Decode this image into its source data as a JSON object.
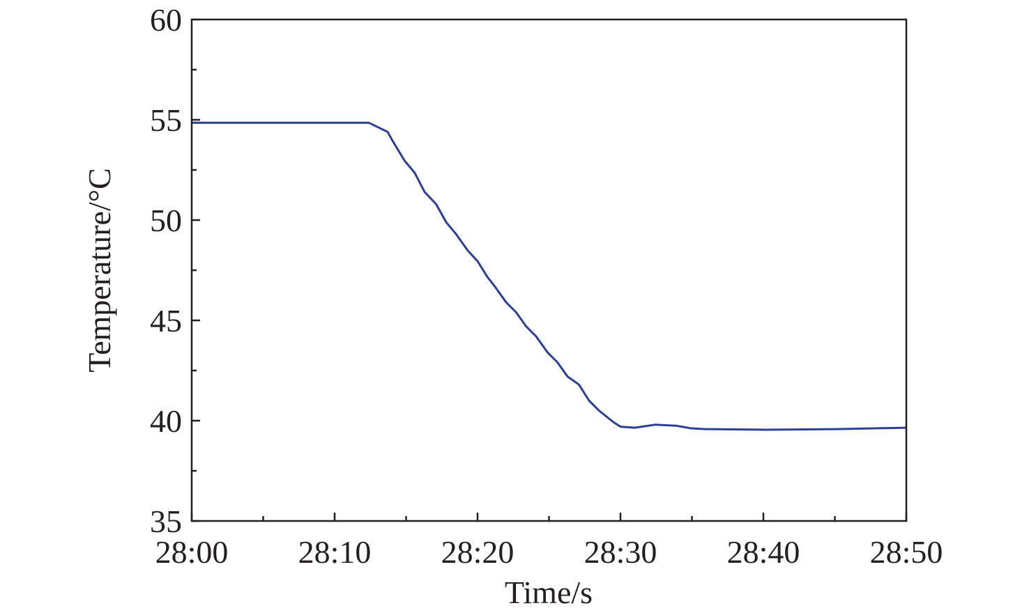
{
  "chart_data": {
    "type": "line",
    "title": "",
    "xlabel": "Time/s",
    "ylabel": "Temperature/°C",
    "xlim": [
      "28:00",
      "28:50"
    ],
    "ylim": [
      35,
      60
    ],
    "x_ticks": [
      "28:00",
      "28:10",
      "28:20",
      "28:30",
      "28:40",
      "28:50"
    ],
    "y_ticks": [
      "35",
      "40",
      "45",
      "50",
      "55",
      "60"
    ],
    "grid": false,
    "legend": "none",
    "line_color": "#2b3f97",
    "series": [
      {
        "x": [
          "28:00.0",
          "28:12.4",
          "28:13.7",
          "28:14.1",
          "28:14.9",
          "28:15.6",
          "28:16.3",
          "28:17.1",
          "28:17.8",
          "28:18.5",
          "28:19.3",
          "28:20.0",
          "28:20.7",
          "28:21.2",
          "28:22.0",
          "28:22.7",
          "28:23.4",
          "28:24.1",
          "28:24.9",
          "28:25.6",
          "28:26.3",
          "28:27.1",
          "28:27.8",
          "28:28.5",
          "28:29.5",
          "28:30.0",
          "28:31.0",
          "28:32.4",
          "28:33.9",
          "28:34.9",
          "28:35.9",
          "28:40.2",
          "28:45.1",
          "28:50.0"
        ],
        "y": [
          54.85,
          54.85,
          54.4,
          53.9,
          52.95,
          52.36,
          51.4,
          50.8,
          49.9,
          49.3,
          48.5,
          47.95,
          47.15,
          46.7,
          45.9,
          45.4,
          44.7,
          44.2,
          43.4,
          42.9,
          42.2,
          41.8,
          41.0,
          40.5,
          39.93,
          39.7,
          39.65,
          39.8,
          39.75,
          39.62,
          39.58,
          39.55,
          39.58,
          39.65
        ]
      }
    ]
  }
}
